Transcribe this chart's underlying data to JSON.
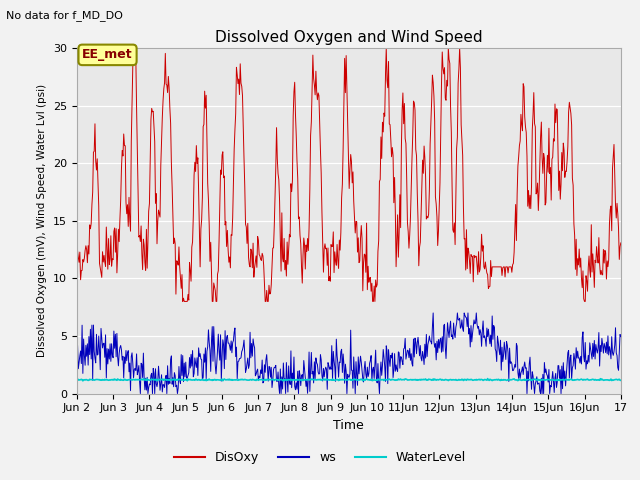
{
  "title": "Dissolved Oxygen and Wind Speed",
  "subtitle": "No data for f_MD_DO",
  "xlabel": "Time",
  "ylabel": "Dissolved Oxygen (mV), Wind Speed, Water Lvl (psi)",
  "annotation": "EE_met",
  "ylim": [
    0,
    30
  ],
  "yticks": [
    0,
    5,
    10,
    15,
    20,
    25,
    30
  ],
  "xtick_labels": [
    "Jun 2",
    "Jun 3",
    "Jun 4",
    "Jun 5",
    "Jun 6",
    "Jun 7",
    "Jun 8",
    "Jun 9",
    "Jun 10",
    "11Jun",
    "12Jun",
    "13Jun",
    "14Jun",
    "15Jun",
    "16Jun",
    "17"
  ],
  "bg_color": "#e8e8e8",
  "fig_color": "#f2f2f2",
  "line_colors": {
    "DisOxy": "#cc0000",
    "ws": "#0000bb",
    "WaterLevel": "#00cccc"
  },
  "legend_labels": [
    "DisOxy",
    "ws",
    "WaterLevel"
  ],
  "legend_colors": [
    "#cc0000",
    "#0000bb",
    "#00cccc"
  ],
  "grid_color": "#ffffff"
}
